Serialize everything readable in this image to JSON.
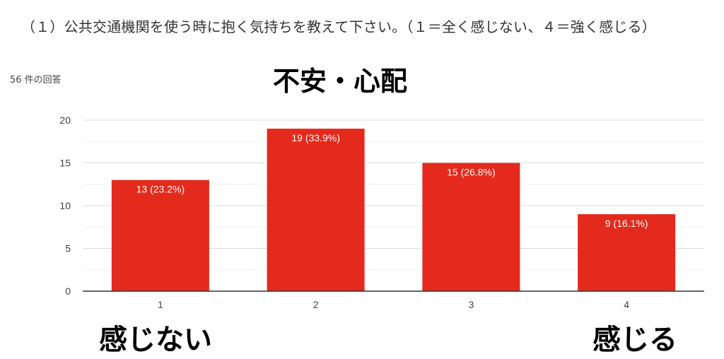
{
  "header": {
    "question": "（１）公共交通機関を使う時に抱く気持ちを教えて下さい。（１＝全く感じない、４＝強く感じる）",
    "response_count": "56 件の回答"
  },
  "chart_data": {
    "type": "bar",
    "title": "不安・心配",
    "categories": [
      "1",
      "2",
      "3",
      "4"
    ],
    "values": [
      13,
      19,
      15,
      9
    ],
    "data_labels": [
      "13 (23.2%)",
      "19 (33.9%)",
      "15 (26.8%)",
      "9 (16.1%)"
    ],
    "yticks": [
      "0",
      "5",
      "10",
      "15",
      "20"
    ],
    "ylim": [
      0,
      20
    ],
    "grid": true,
    "bar_color": "#e42a1c",
    "xlabel": "",
    "ylabel": ""
  },
  "annotations": {
    "left": "感じない",
    "right": "感じる"
  }
}
